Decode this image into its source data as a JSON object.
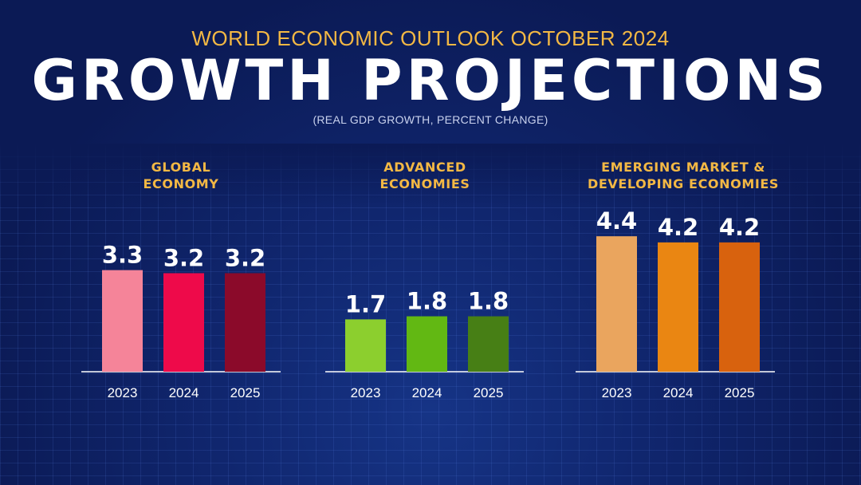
{
  "header": {
    "supertitle": "WORLD ECONOMIC OUTLOOK OCTOBER 2024",
    "title": "GROWTH PROJECTIONS",
    "subtitle": "(REAL GDP GROWTH, PERCENT CHANGE)"
  },
  "chart_data": [
    {
      "type": "bar",
      "title_lines": [
        "GLOBAL",
        "ECONOMY"
      ],
      "categories": [
        "2023",
        "2024",
        "2025"
      ],
      "values": [
        3.3,
        3.2,
        3.2
      ],
      "value_labels": [
        "3.3",
        "3.2",
        "3.2"
      ],
      "colors": [
        "#f58499",
        "#ee0a4a",
        "#8b0a2a"
      ],
      "ylim": [
        0,
        4.4
      ],
      "unit": "percent change"
    },
    {
      "type": "bar",
      "title_lines": [
        "ADVANCED",
        "ECONOMIES"
      ],
      "categories": [
        "2023",
        "2024",
        "2025"
      ],
      "values": [
        1.7,
        1.8,
        1.8
      ],
      "value_labels": [
        "1.7",
        "1.8",
        "1.8"
      ],
      "colors": [
        "#8ccf2e",
        "#62b813",
        "#477f15"
      ],
      "ylim": [
        0,
        4.4
      ],
      "unit": "percent change"
    },
    {
      "type": "bar",
      "title_lines": [
        "EMERGING MARKET &",
        "DEVELOPING ECONOMIES"
      ],
      "categories": [
        "2023",
        "2024",
        "2025"
      ],
      "values": [
        4.4,
        4.2,
        4.2
      ],
      "value_labels": [
        "4.4",
        "4.2",
        "4.2"
      ],
      "colors": [
        "#eaa55e",
        "#ea8612",
        "#d8620e"
      ],
      "ylim": [
        0,
        4.4
      ],
      "unit": "percent change"
    }
  ]
}
